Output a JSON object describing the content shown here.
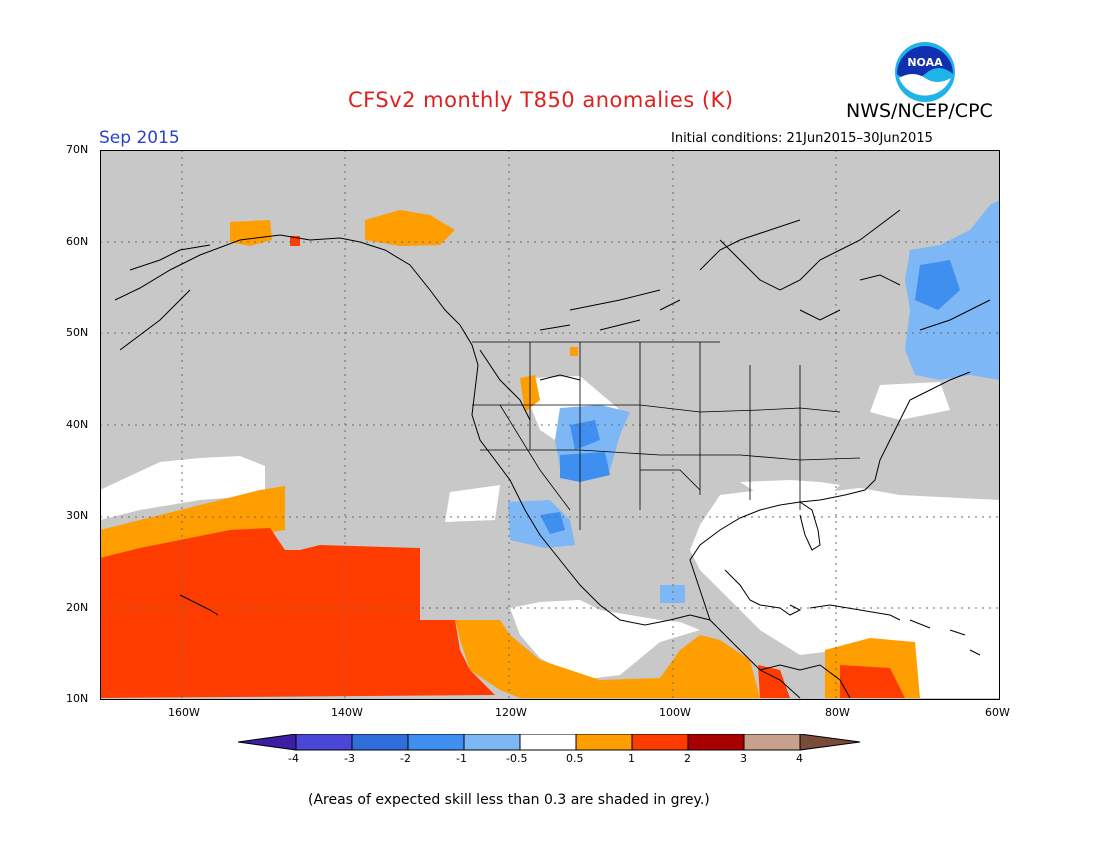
{
  "title": "CFSv2 monthly T850 anomalies (K)",
  "period": "Sep 2015",
  "agency": "NWS/NCEP/CPC",
  "logo_text": "NOAA",
  "initial_conditions": "Initial conditions: 21Jun2015–30Jun2015",
  "footnote": "(Areas of expected skill less than 0.3 are shaded in grey.)",
  "lat_labels": [
    "70N",
    "60N",
    "50N",
    "40N",
    "30N",
    "20N",
    "10N"
  ],
  "lon_labels": [
    "160W",
    "140W",
    "120W",
    "100W",
    "80W",
    "60W"
  ],
  "colorbar": {
    "labels": [
      "-4",
      "-3",
      "-2",
      "-1",
      "-0.5",
      "0.5",
      "1",
      "2",
      "3",
      "4"
    ],
    "colors": [
      "#3b1ea4",
      "#4a46d6",
      "#2f6fdc",
      "#3f8ff0",
      "#7db7f5",
      "#ffffff",
      "#ff9e00",
      "#ff3c00",
      "#a80000",
      "#c8a08e",
      "#7a4a3a"
    ]
  },
  "colors": {
    "grey_skill": "#c8c8c8",
    "warm_1": "#ff9e00",
    "warm_2": "#ff3c00",
    "cool_1": "#7db7f5",
    "cool_2": "#3f8ff0"
  }
}
